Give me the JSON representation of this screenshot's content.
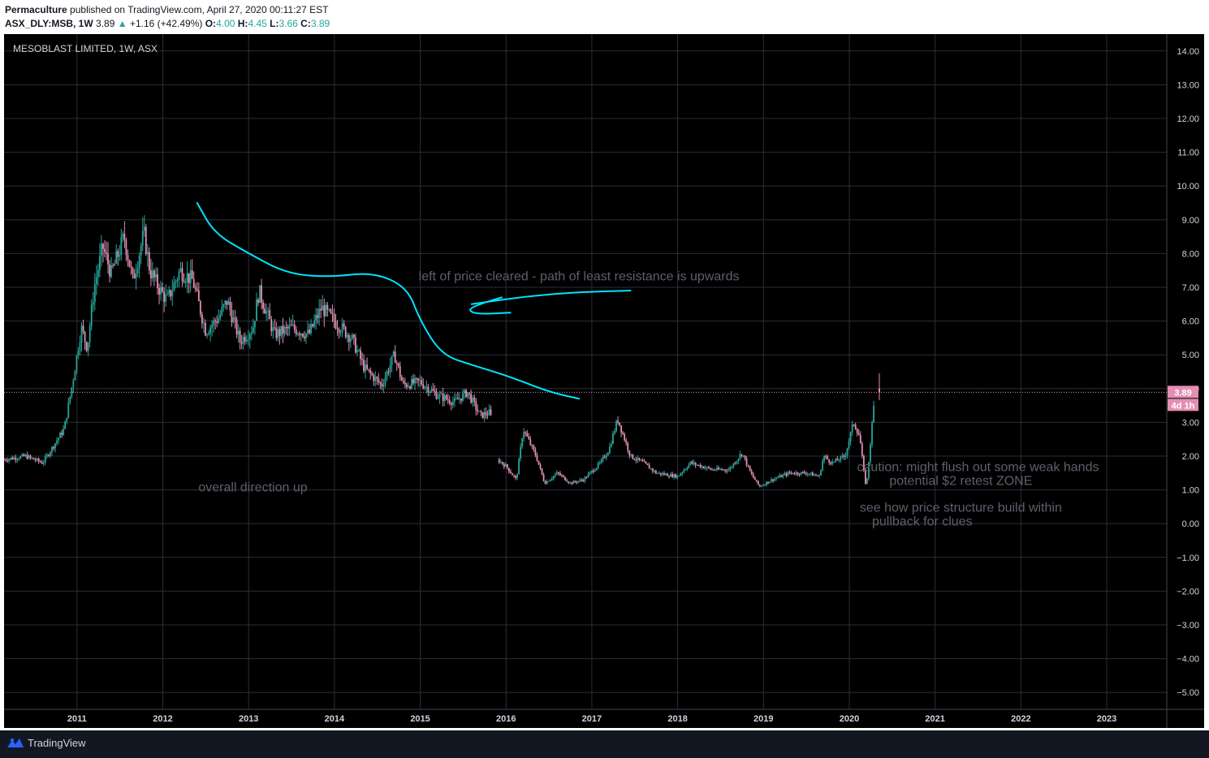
{
  "header": {
    "author": "Permaculture",
    "published_text": "published on TradingView.com, April 27, 2020 00:11:27 EST",
    "symbol": "ASX_DLY:MSB, 1W",
    "last": "3.89",
    "change": "+1.16 (+42.49%)",
    "o_label": "O:",
    "o": "4.00",
    "h_label": "H:",
    "h": "4.45",
    "l_label": "L:",
    "l": "3.66",
    "c_label": "C:",
    "c": "3.89"
  },
  "footer": {
    "brand": "TradingView"
  },
  "colors": {
    "background": "#000000",
    "grid": "#2a2e39",
    "up": "#26a69a",
    "down": "#e38fb3",
    "drawing": "#00e5ff",
    "annotation": "#5d606b",
    "axis_text": "#d1d4dc",
    "price_tag": "#e38fb3"
  },
  "chart_data": {
    "type": "candlestick",
    "title": "MESOBLAST LIMITED, 1W, ASX",
    "interval": "1W",
    "x_range": [
      2010.15,
      2023.7
    ],
    "y_range": [
      -5.5,
      14.5
    ],
    "x_ticks": [
      "2011",
      "2012",
      "2013",
      "2014",
      "2015",
      "2016",
      "2017",
      "2018",
      "2019",
      "2020",
      "2021",
      "2022",
      "2023"
    ],
    "y_ticks": [
      "14.00",
      "13.00",
      "12.00",
      "11.00",
      "10.00",
      "9.00",
      "8.00",
      "7.00",
      "6.00",
      "5.00",
      "4.00",
      "3.00",
      "2.00",
      "1.00",
      "0.00",
      "−1.00",
      "−2.00",
      "−3.00",
      "−4.00",
      "−5.00"
    ],
    "last_price": 3.89,
    "last_price_label": "3.89",
    "countdown_label": "4d 1h",
    "grid": true,
    "price_path": [
      [
        2010.15,
        1.9
      ],
      [
        2010.4,
        2.0
      ],
      [
        2010.6,
        1.8
      ],
      [
        2010.75,
        2.4
      ],
      [
        2010.85,
        2.8
      ],
      [
        2010.95,
        4.2
      ],
      [
        2011.05,
        5.8
      ],
      [
        2011.12,
        5.2
      ],
      [
        2011.2,
        7.0
      ],
      [
        2011.3,
        8.2
      ],
      [
        2011.4,
        7.4
      ],
      [
        2011.55,
        8.5
      ],
      [
        2011.65,
        7.2
      ],
      [
        2011.78,
        8.6
      ],
      [
        2011.85,
        7.5
      ],
      [
        2011.95,
        7.0
      ],
      [
        2012.05,
        6.6
      ],
      [
        2012.2,
        7.5
      ],
      [
        2012.35,
        7.2
      ],
      [
        2012.5,
        5.7
      ],
      [
        2012.65,
        6.1
      ],
      [
        2012.75,
        6.6
      ],
      [
        2012.9,
        5.4
      ],
      [
        2013.05,
        5.8
      ],
      [
        2013.12,
        6.9
      ],
      [
        2013.3,
        5.6
      ],
      [
        2013.5,
        5.8
      ],
      [
        2013.7,
        5.6
      ],
      [
        2013.85,
        6.4
      ],
      [
        2014.0,
        6.0
      ],
      [
        2014.2,
        5.5
      ],
      [
        2014.35,
        4.6
      ],
      [
        2014.55,
        4.1
      ],
      [
        2014.7,
        5.0
      ],
      [
        2014.8,
        4.1
      ],
      [
        2015.0,
        4.2
      ],
      [
        2015.2,
        3.8
      ],
      [
        2015.4,
        3.6
      ],
      [
        2015.55,
        3.9
      ],
      [
        2015.7,
        3.2
      ],
      [
        2015.82,
        3.3
      ],
      [
        2015.85,
        2.0
      ],
      [
        2016.0,
        1.7
      ],
      [
        2016.12,
        1.3
      ],
      [
        2016.2,
        2.8
      ],
      [
        2016.35,
        2.0
      ],
      [
        2016.45,
        1.2
      ],
      [
        2016.6,
        1.5
      ],
      [
        2016.75,
        1.2
      ],
      [
        2016.9,
        1.3
      ],
      [
        2017.1,
        1.8
      ],
      [
        2017.2,
        2.2
      ],
      [
        2017.3,
        3.1
      ],
      [
        2017.45,
        2.0
      ],
      [
        2017.6,
        1.8
      ],
      [
        2017.75,
        1.5
      ],
      [
        2018.0,
        1.4
      ],
      [
        2018.15,
        1.8
      ],
      [
        2018.4,
        1.6
      ],
      [
        2018.6,
        1.6
      ],
      [
        2018.75,
        2.1
      ],
      [
        2018.85,
        1.5
      ],
      [
        2018.95,
        1.1
      ],
      [
        2019.1,
        1.3
      ],
      [
        2019.3,
        1.5
      ],
      [
        2019.5,
        1.5
      ],
      [
        2019.65,
        1.4
      ],
      [
        2019.7,
        2.0
      ],
      [
        2019.8,
        1.8
      ],
      [
        2019.95,
        2.0
      ],
      [
        2020.05,
        3.0
      ],
      [
        2020.12,
        2.6
      ],
      [
        2020.18,
        1.3
      ],
      [
        2020.2,
        1.1
      ],
      [
        2020.25,
        2.5
      ],
      [
        2020.3,
        3.89
      ]
    ],
    "annotations": [
      {
        "text": "left of price cleared - path of least resistance is upwards",
        "x": 2016.85,
        "y": 7.2
      },
      {
        "text": "overall direction up",
        "x": 2013.05,
        "y": 0.95
      },
      {
        "text": "caution: might flush out some weak hands",
        "x": 2021.5,
        "y": 1.55
      },
      {
        "text": "potential $2 retest ZONE",
        "x": 2021.3,
        "y": 1.15
      },
      {
        "text": "see how price structure build within",
        "x": 2021.3,
        "y": 0.35
      },
      {
        "text": "pullback for clues",
        "x": 2020.85,
        "y": -0.05
      }
    ],
    "drawings": [
      {
        "name": "resistance-curve",
        "points": [
          [
            2012.4,
            9.5
          ],
          [
            2012.6,
            8.6
          ],
          [
            2013.0,
            8.0
          ],
          [
            2013.45,
            7.4
          ],
          [
            2013.95,
            7.3
          ],
          [
            2014.45,
            7.45
          ],
          [
            2014.85,
            7.0
          ],
          [
            2015.0,
            6.0
          ],
          [
            2015.25,
            5.0
          ],
          [
            2015.6,
            4.7
          ],
          [
            2016.05,
            4.35
          ],
          [
            2016.5,
            3.9
          ],
          [
            2016.85,
            3.7
          ]
        ]
      },
      {
        "name": "upward-arrow-stroke",
        "points": [
          [
            2015.6,
            6.5
          ],
          [
            2016.0,
            6.65
          ],
          [
            2016.5,
            6.8
          ],
          [
            2017.0,
            6.87
          ],
          [
            2017.45,
            6.9
          ]
        ]
      },
      {
        "name": "arrow-hook",
        "points": [
          [
            2016.05,
            6.25
          ],
          [
            2015.65,
            6.2
          ],
          [
            2015.55,
            6.35
          ],
          [
            2015.75,
            6.55
          ],
          [
            2015.95,
            6.7
          ]
        ]
      }
    ]
  }
}
